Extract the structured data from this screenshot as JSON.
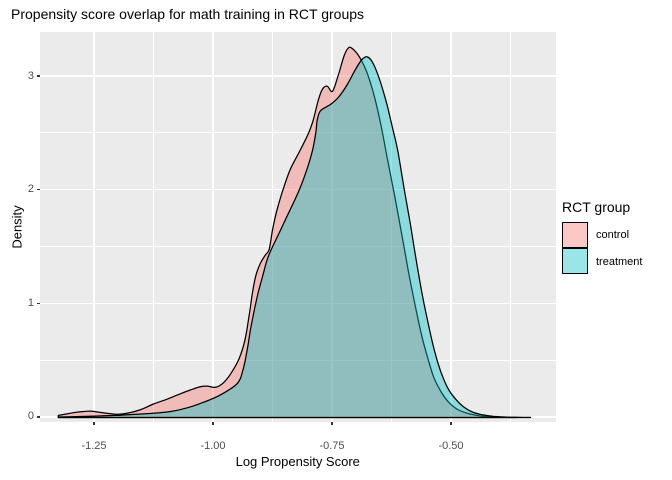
{
  "title": "Propensity score overlap for math training in RCT groups",
  "colors": {
    "panel_bg": "#EBEBEB",
    "grid": "#FFFFFF",
    "tick_mark": "#333333",
    "tick_label": "#4D4D4D",
    "text": "#000000",
    "curve_outline": "#000000",
    "control_fill": "#F8766D",
    "treatment_fill": "#00BFC4"
  },
  "legend": {
    "title": "RCT group",
    "position": "right",
    "items": [
      {
        "label": "control",
        "color": "#F8766D",
        "opacity": 0.4
      },
      {
        "label": "treatment",
        "color": "#00BFC4",
        "opacity": 0.4
      }
    ]
  },
  "chart_data": {
    "type": "area",
    "subtype": "density",
    "title": "Propensity score overlap for math training in RCT groups",
    "xlabel": "Log Propensity Score",
    "ylabel": "Density",
    "grid": true,
    "legend_position": "right",
    "x_range": [
      -1.3645,
      -0.2794
    ],
    "y_range": [
      -0.0397,
      3.392
    ],
    "x_ticks": [
      -1.25,
      -1.0,
      -0.75,
      -0.5
    ],
    "x_tick_labels": [
      "-1.25",
      "-1.00",
      "-0.75",
      "-0.50"
    ],
    "x_minor_ticks": [
      -1.375,
      -1.125,
      -0.875,
      -0.625,
      -0.375
    ],
    "y_ticks": [
      0,
      1,
      2,
      3
    ],
    "y_tick_labels": [
      "0",
      "1",
      "2",
      "3"
    ],
    "y_minor_ticks": [
      0.5,
      1.5,
      2.5
    ],
    "series": [
      {
        "name": "control",
        "color": "#F8766D",
        "fill_opacity": 0.4,
        "peak": {
          "x": -0.715,
          "density": 3.257
        },
        "points": [
          [
            -1.326,
            0.018
          ],
          [
            -1.308,
            0.032
          ],
          [
            -1.29,
            0.045
          ],
          [
            -1.272,
            0.053
          ],
          [
            -1.258,
            0.056
          ],
          [
            -1.242,
            0.047
          ],
          [
            -1.222,
            0.036
          ],
          [
            -1.2,
            0.028
          ],
          [
            -1.178,
            0.04
          ],
          [
            -1.152,
            0.07
          ],
          [
            -1.126,
            0.119
          ],
          [
            -1.099,
            0.159
          ],
          [
            -1.073,
            0.203
          ],
          [
            -1.048,
            0.243
          ],
          [
            -1.027,
            0.272
          ],
          [
            -1.013,
            0.276
          ],
          [
            -0.996,
            0.266
          ],
          [
            -0.98,
            0.302
          ],
          [
            -0.963,
            0.39
          ],
          [
            -0.946,
            0.52
          ],
          [
            -0.934,
            0.68
          ],
          [
            -0.925,
            0.9
          ],
          [
            -0.918,
            1.1
          ],
          [
            -0.911,
            1.25
          ],
          [
            -0.901,
            1.36
          ],
          [
            -0.891,
            1.43
          ],
          [
            -0.883,
            1.48
          ],
          [
            -0.876,
            1.65
          ],
          [
            -0.867,
            1.82
          ],
          [
            -0.855,
            1.99
          ],
          [
            -0.839,
            2.18
          ],
          [
            -0.818,
            2.35
          ],
          [
            -0.8,
            2.505
          ],
          [
            -0.79,
            2.625
          ],
          [
            -0.78,
            2.79
          ],
          [
            -0.771,
            2.89
          ],
          [
            -0.761,
            2.915
          ],
          [
            -0.75,
            2.87
          ],
          [
            -0.738,
            3.01
          ],
          [
            -0.725,
            3.19
          ],
          [
            -0.715,
            3.257
          ],
          [
            -0.704,
            3.23
          ],
          [
            -0.693,
            3.17
          ],
          [
            -0.678,
            3.04
          ],
          [
            -0.663,
            2.84
          ],
          [
            -0.648,
            2.57
          ],
          [
            -0.634,
            2.26
          ],
          [
            -0.619,
            1.94
          ],
          [
            -0.604,
            1.6
          ],
          [
            -0.59,
            1.27
          ],
          [
            -0.575,
            0.96
          ],
          [
            -0.562,
            0.71
          ],
          [
            -0.549,
            0.51
          ],
          [
            -0.537,
            0.35
          ],
          [
            -0.521,
            0.22
          ],
          [
            -0.505,
            0.13
          ],
          [
            -0.487,
            0.07
          ],
          [
            -0.465,
            0.035
          ],
          [
            -0.442,
            0.016
          ],
          [
            -0.413,
            0.006
          ],
          [
            -0.385,
            0.002
          ],
          [
            -0.362,
            0.001
          ]
        ]
      },
      {
        "name": "treatment",
        "color": "#00BFC4",
        "fill_opacity": 0.4,
        "peak": {
          "x": -0.676,
          "density": 3.172
        },
        "points": [
          [
            -1.326,
            0.004
          ],
          [
            -1.28,
            0.009
          ],
          [
            -1.237,
            0.014
          ],
          [
            -1.195,
            0.02
          ],
          [
            -1.152,
            0.031
          ],
          [
            -1.126,
            0.038
          ],
          [
            -1.09,
            0.053
          ],
          [
            -1.055,
            0.085
          ],
          [
            -1.02,
            0.135
          ],
          [
            -0.985,
            0.2
          ],
          [
            -0.95,
            0.3
          ],
          [
            -0.938,
            0.42
          ],
          [
            -0.929,
            0.6
          ],
          [
            -0.922,
            0.78
          ],
          [
            -0.914,
            0.95
          ],
          [
            -0.906,
            1.1
          ],
          [
            -0.897,
            1.24
          ],
          [
            -0.888,
            1.38
          ],
          [
            -0.879,
            1.475
          ],
          [
            -0.859,
            1.65
          ],
          [
            -0.84,
            1.82
          ],
          [
            -0.821,
            1.99
          ],
          [
            -0.804,
            2.18
          ],
          [
            -0.792,
            2.35
          ],
          [
            -0.785,
            2.505
          ],
          [
            -0.782,
            2.62
          ],
          [
            -0.775,
            2.7
          ],
          [
            -0.754,
            2.755
          ],
          [
            -0.737,
            2.82
          ],
          [
            -0.719,
            2.93
          ],
          [
            -0.702,
            3.06
          ],
          [
            -0.688,
            3.15
          ],
          [
            -0.676,
            3.172
          ],
          [
            -0.664,
            3.11
          ],
          [
            -0.65,
            2.96
          ],
          [
            -0.636,
            2.76
          ],
          [
            -0.624,
            2.55
          ],
          [
            -0.613,
            2.35
          ],
          [
            -0.599,
            2.0
          ],
          [
            -0.586,
            1.69
          ],
          [
            -0.574,
            1.38
          ],
          [
            -0.561,
            1.07
          ],
          [
            -0.548,
            0.81
          ],
          [
            -0.536,
            0.59
          ],
          [
            -0.523,
            0.41
          ],
          [
            -0.508,
            0.26
          ],
          [
            -0.491,
            0.16
          ],
          [
            -0.475,
            0.095
          ],
          [
            -0.456,
            0.048
          ],
          [
            -0.435,
            0.024
          ],
          [
            -0.412,
            0.01
          ],
          [
            -0.387,
            0.004
          ],
          [
            -0.36,
            0.002
          ],
          [
            -0.334,
            0.001
          ]
        ]
      }
    ]
  }
}
